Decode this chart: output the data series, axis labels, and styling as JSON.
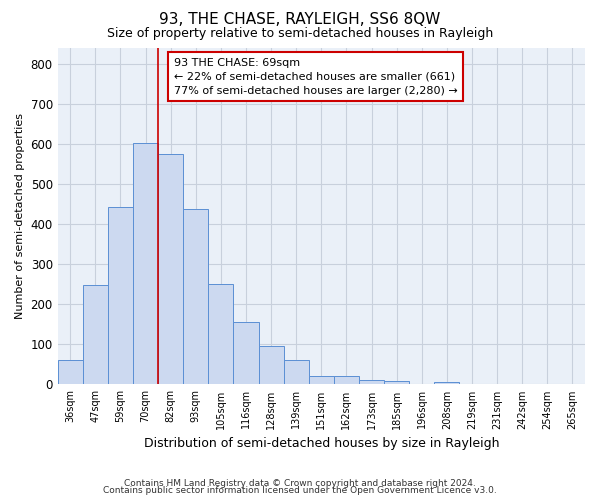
{
  "title": "93, THE CHASE, RAYLEIGH, SS6 8QW",
  "subtitle": "Size of property relative to semi-detached houses in Rayleigh",
  "xlabel": "Distribution of semi-detached houses by size in Rayleigh",
  "ylabel": "Number of semi-detached properties",
  "categories": [
    "36sqm",
    "47sqm",
    "59sqm",
    "70sqm",
    "82sqm",
    "93sqm",
    "105sqm",
    "116sqm",
    "128sqm",
    "139sqm",
    "151sqm",
    "162sqm",
    "173sqm",
    "185sqm",
    "196sqm",
    "208sqm",
    "219sqm",
    "231sqm",
    "242sqm",
    "254sqm",
    "265sqm"
  ],
  "values": [
    60,
    248,
    443,
    601,
    575,
    438,
    251,
    156,
    97,
    60,
    20,
    20,
    10,
    8,
    0,
    5,
    0,
    0,
    0,
    0,
    0
  ],
  "bar_color": "#ccd9f0",
  "bar_edge_color": "#5b8fd4",
  "vline_index": 3.5,
  "vline_color": "#cc0000",
  "annotation_title": "93 THE CHASE: 69sqm",
  "annotation_line1": "← 22% of semi-detached houses are smaller (661)",
  "annotation_line2": "77% of semi-detached houses are larger (2,280) →",
  "annotation_box_color": "#cc0000",
  "ylim": [
    0,
    840
  ],
  "yticks": [
    0,
    100,
    200,
    300,
    400,
    500,
    600,
    700,
    800
  ],
  "footer1": "Contains HM Land Registry data © Crown copyright and database right 2024.",
  "footer2": "Contains public sector information licensed under the Open Government Licence v3.0.",
  "bg_color": "#eaf0f8",
  "grid_color": "#c8d0dc",
  "title_fontsize": 11,
  "subtitle_fontsize": 9
}
